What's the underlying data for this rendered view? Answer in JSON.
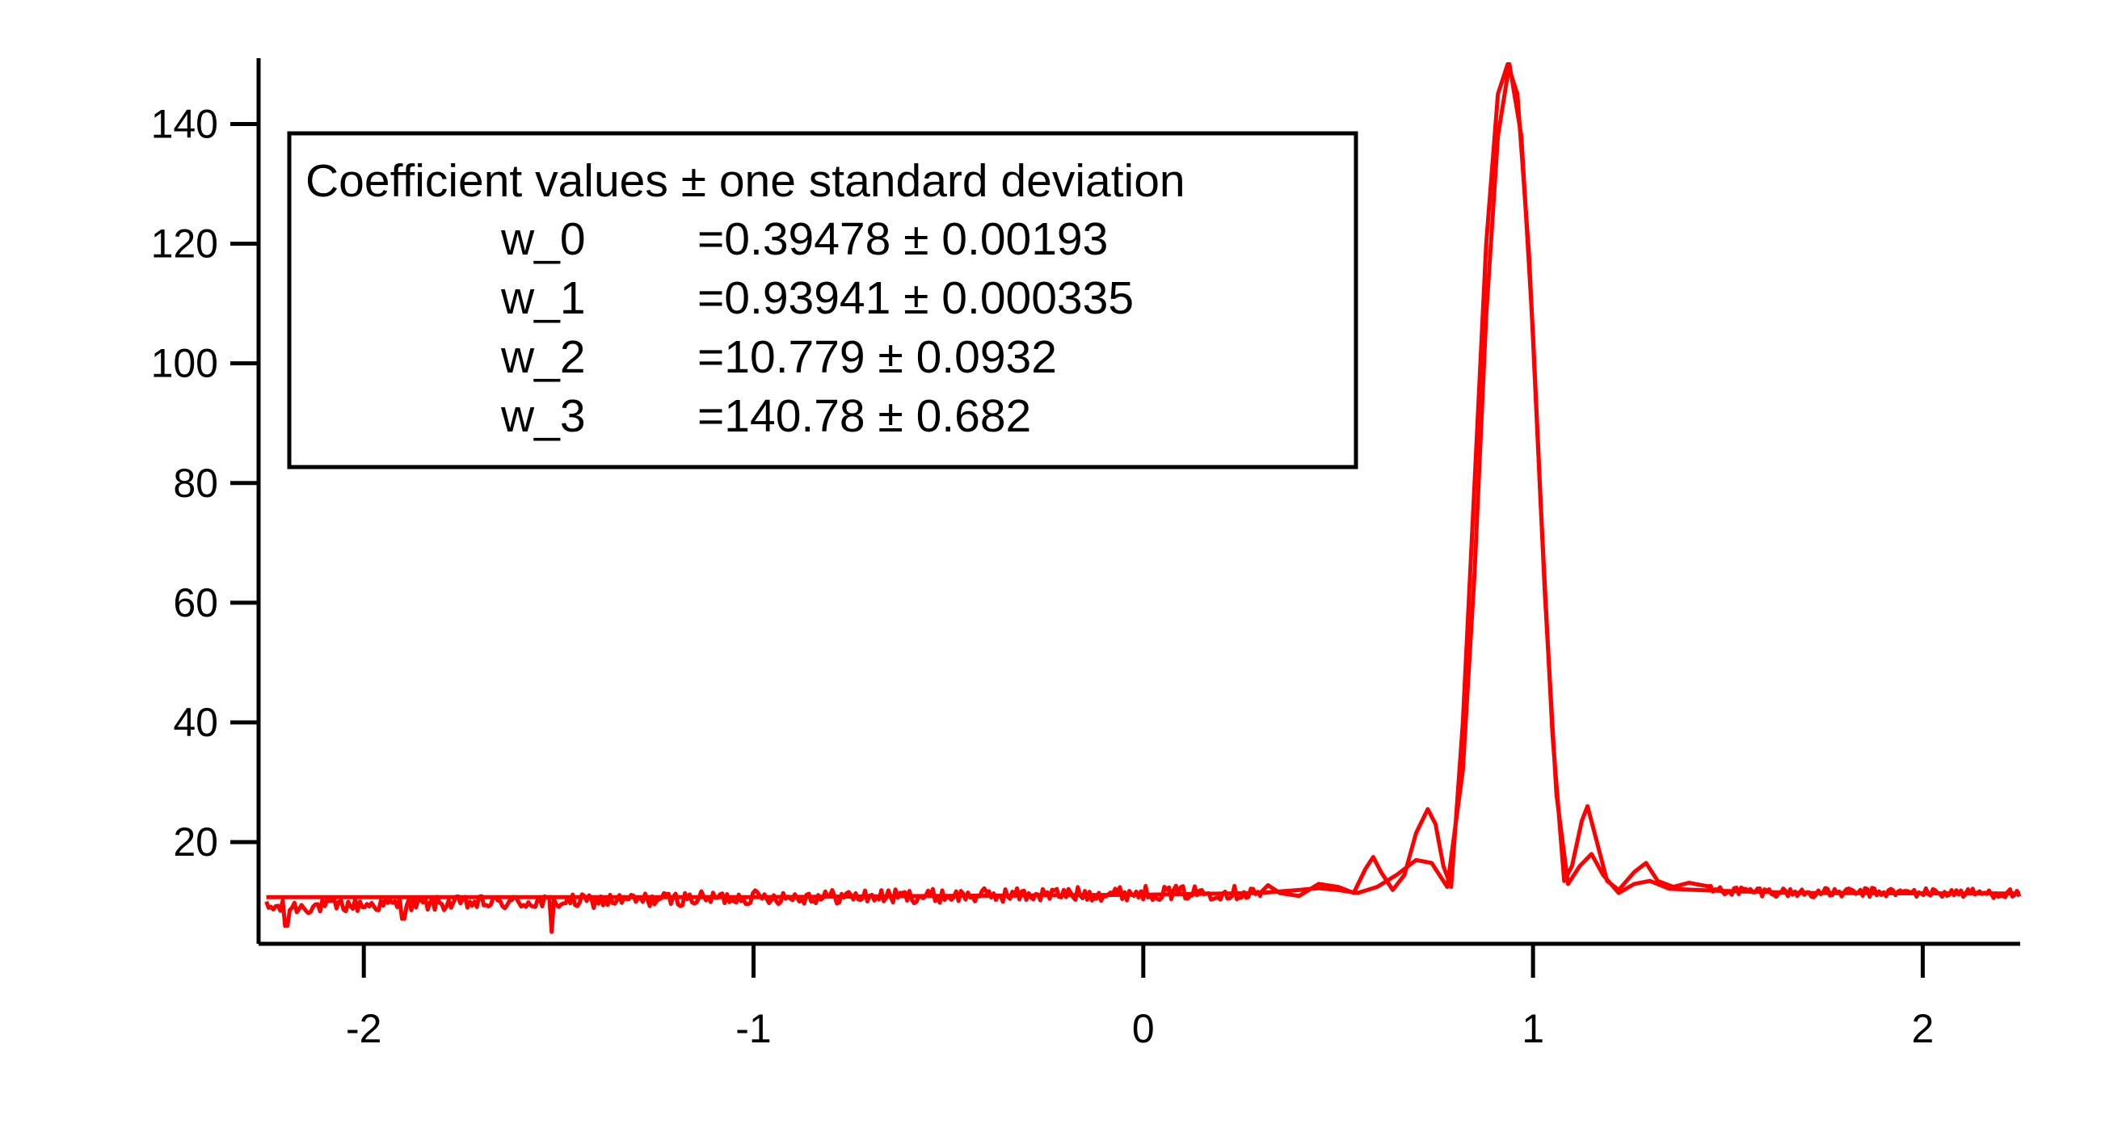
{
  "chart_data": {
    "type": "line",
    "title": "",
    "xlabel": "",
    "ylabel": "",
    "xlim": [
      -2.27,
      2.25
    ],
    "ylim": [
      3,
      151
    ],
    "x_ticks": [
      -2,
      -1,
      0,
      1,
      2
    ],
    "x_tick_labels": [
      "-2",
      "-1",
      "0",
      "1",
      "2"
    ],
    "y_ticks": [
      20,
      40,
      60,
      80,
      100,
      120,
      140
    ],
    "y_tick_labels": [
      "20",
      "40",
      "60",
      "80",
      "100",
      "120",
      "140"
    ],
    "grid": false,
    "line_color": "#ff0000",
    "annotation": {
      "title": "Coefficient values ± one standard deviation",
      "rows": [
        {
          "name": "w_0",
          "value": "=0.39478 ± 0.00193"
        },
        {
          "name": "w_1",
          "value": "=0.93941 ± 0.000335"
        },
        {
          "name": "w_2",
          "value": "=10.779 ± 0.0932"
        },
        {
          "name": "w_3",
          "value": "=140.78 ± 0.682"
        }
      ]
    },
    "series": [
      {
        "role": "data",
        "baseline_points": [
          [
            -2.25,
            9.0
          ],
          [
            -2.0,
            9.5
          ],
          [
            -1.5,
            10.0
          ],
          [
            -1.0,
            10.8
          ],
          [
            -0.5,
            11.0
          ],
          [
            0.0,
            11.5
          ],
          [
            0.3,
            11.6
          ]
        ],
        "noise_amplitude": 1.2,
        "dips": [
          [
            -2.2,
            6.0
          ],
          [
            -1.52,
            5.0
          ],
          [
            -1.9,
            7.2
          ]
        ],
        "points": [
          [
            0.3,
            11.5
          ],
          [
            0.32,
            12.8
          ],
          [
            0.35,
            11.5
          ],
          [
            0.4,
            11.0
          ],
          [
            0.45,
            13.0
          ],
          [
            0.5,
            12.5
          ],
          [
            0.54,
            11.5
          ],
          [
            0.57,
            15.5
          ],
          [
            0.59,
            17.5
          ],
          [
            0.61,
            15.0
          ],
          [
            0.64,
            12.0
          ],
          [
            0.67,
            14.5
          ],
          [
            0.7,
            21.5
          ],
          [
            0.73,
            25.5
          ],
          [
            0.75,
            23.0
          ],
          [
            0.77,
            16.0
          ],
          [
            0.79,
            12.5
          ],
          [
            0.82,
            40.0
          ],
          [
            0.85,
            80.0
          ],
          [
            0.88,
            120.0
          ],
          [
            0.91,
            145.0
          ],
          [
            0.935,
            150.0
          ],
          [
            0.96,
            145.0
          ],
          [
            0.99,
            118.0
          ],
          [
            1.02,
            76.0
          ],
          [
            1.05,
            38.0
          ],
          [
            1.08,
            13.5
          ],
          [
            1.1,
            16.0
          ],
          [
            1.125,
            23.5
          ],
          [
            1.14,
            26.0
          ],
          [
            1.16,
            21.0
          ],
          [
            1.19,
            13.5
          ],
          [
            1.22,
            12.0
          ],
          [
            1.26,
            15.0
          ],
          [
            1.29,
            16.5
          ],
          [
            1.32,
            13.5
          ],
          [
            1.36,
            12.5
          ],
          [
            1.4,
            13.2
          ],
          [
            1.45,
            12.0
          ],
          [
            1.55,
            11.8
          ],
          [
            1.7,
            11.5
          ],
          [
            1.9,
            11.6
          ],
          [
            2.1,
            11.5
          ],
          [
            2.25,
            11.4
          ]
        ]
      },
      {
        "role": "fit",
        "x": [
          -2.25,
          -1.0,
          0.0,
          0.3,
          0.4,
          0.45,
          0.5,
          0.55,
          0.6,
          0.65,
          0.7,
          0.74,
          0.78,
          0.82,
          0.85,
          0.88,
          0.91,
          0.93941,
          0.97,
          1.0,
          1.03,
          1.06,
          1.09,
          1.12,
          1.15,
          1.18,
          1.22,
          1.26,
          1.3,
          1.35,
          1.42,
          1.5,
          1.7,
          2.25
        ],
        "y": [
          10.8,
          10.8,
          11.2,
          11.5,
          12.0,
          12.3,
          12.0,
          11.5,
          12.5,
          14.5,
          17.0,
          16.5,
          12.5,
          32.0,
          65.0,
          108.0,
          138.0,
          150.0,
          138.0,
          105.0,
          62.0,
          28.0,
          13.0,
          16.0,
          18.0,
          14.5,
          11.5,
          13.0,
          13.5,
          12.2,
          12.0,
          11.8,
          11.5,
          11.4
        ]
      }
    ]
  }
}
